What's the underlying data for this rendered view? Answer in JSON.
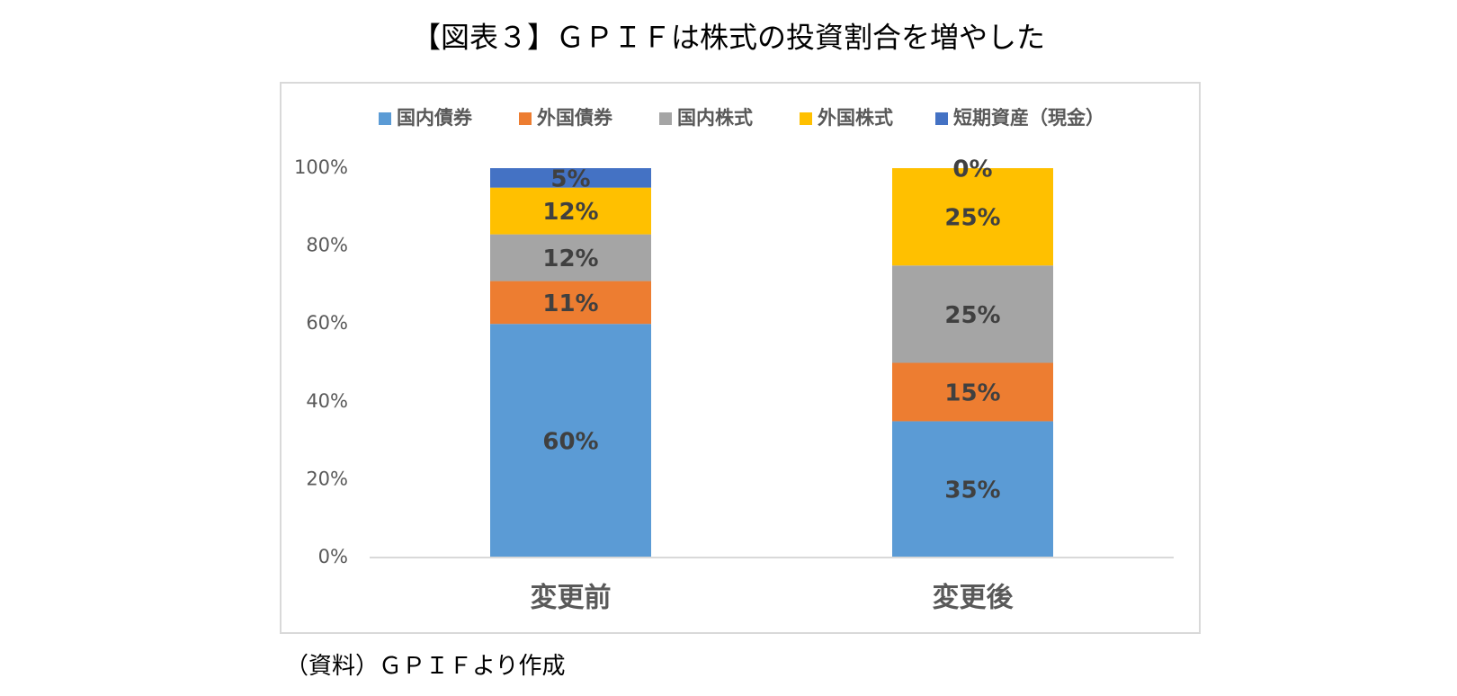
{
  "chart_data": {
    "type": "bar",
    "stacked": true,
    "title": "【図表３】ＧＰＩＦは株式の投資割合を増やした",
    "source": "（資料）ＧＰＩＦより作成",
    "categories": [
      "変更前",
      "変更後"
    ],
    "series": [
      {
        "name": "国内債券",
        "color": "#5b9bd5",
        "values": [
          60,
          35
        ],
        "value_labels": [
          "60%",
          "35%"
        ]
      },
      {
        "name": "外国債券",
        "color": "#ed7d31",
        "values": [
          11,
          15
        ],
        "value_labels": [
          "11%",
          "15%"
        ]
      },
      {
        "name": "国内株式",
        "color": "#a5a5a5",
        "values": [
          12,
          25
        ],
        "value_labels": [
          "12%",
          "25%"
        ]
      },
      {
        "name": "外国株式",
        "color": "#ffc000",
        "values": [
          12,
          25
        ],
        "value_labels": [
          "12%",
          "25%"
        ]
      },
      {
        "name": "短期資産（現金）",
        "color": "#4472c4",
        "values": [
          5,
          0
        ],
        "value_labels": [
          "5%",
          "0%"
        ]
      }
    ],
    "ylim": [
      0,
      100
    ],
    "yticks": [
      {
        "value": 0,
        "label": "0%"
      },
      {
        "value": 20,
        "label": "20%"
      },
      {
        "value": 40,
        "label": "40%"
      },
      {
        "value": 60,
        "label": "60%"
      },
      {
        "value": 80,
        "label": "80%"
      },
      {
        "value": 100,
        "label": "100%"
      }
    ],
    "grid": false,
    "legend": "top"
  }
}
